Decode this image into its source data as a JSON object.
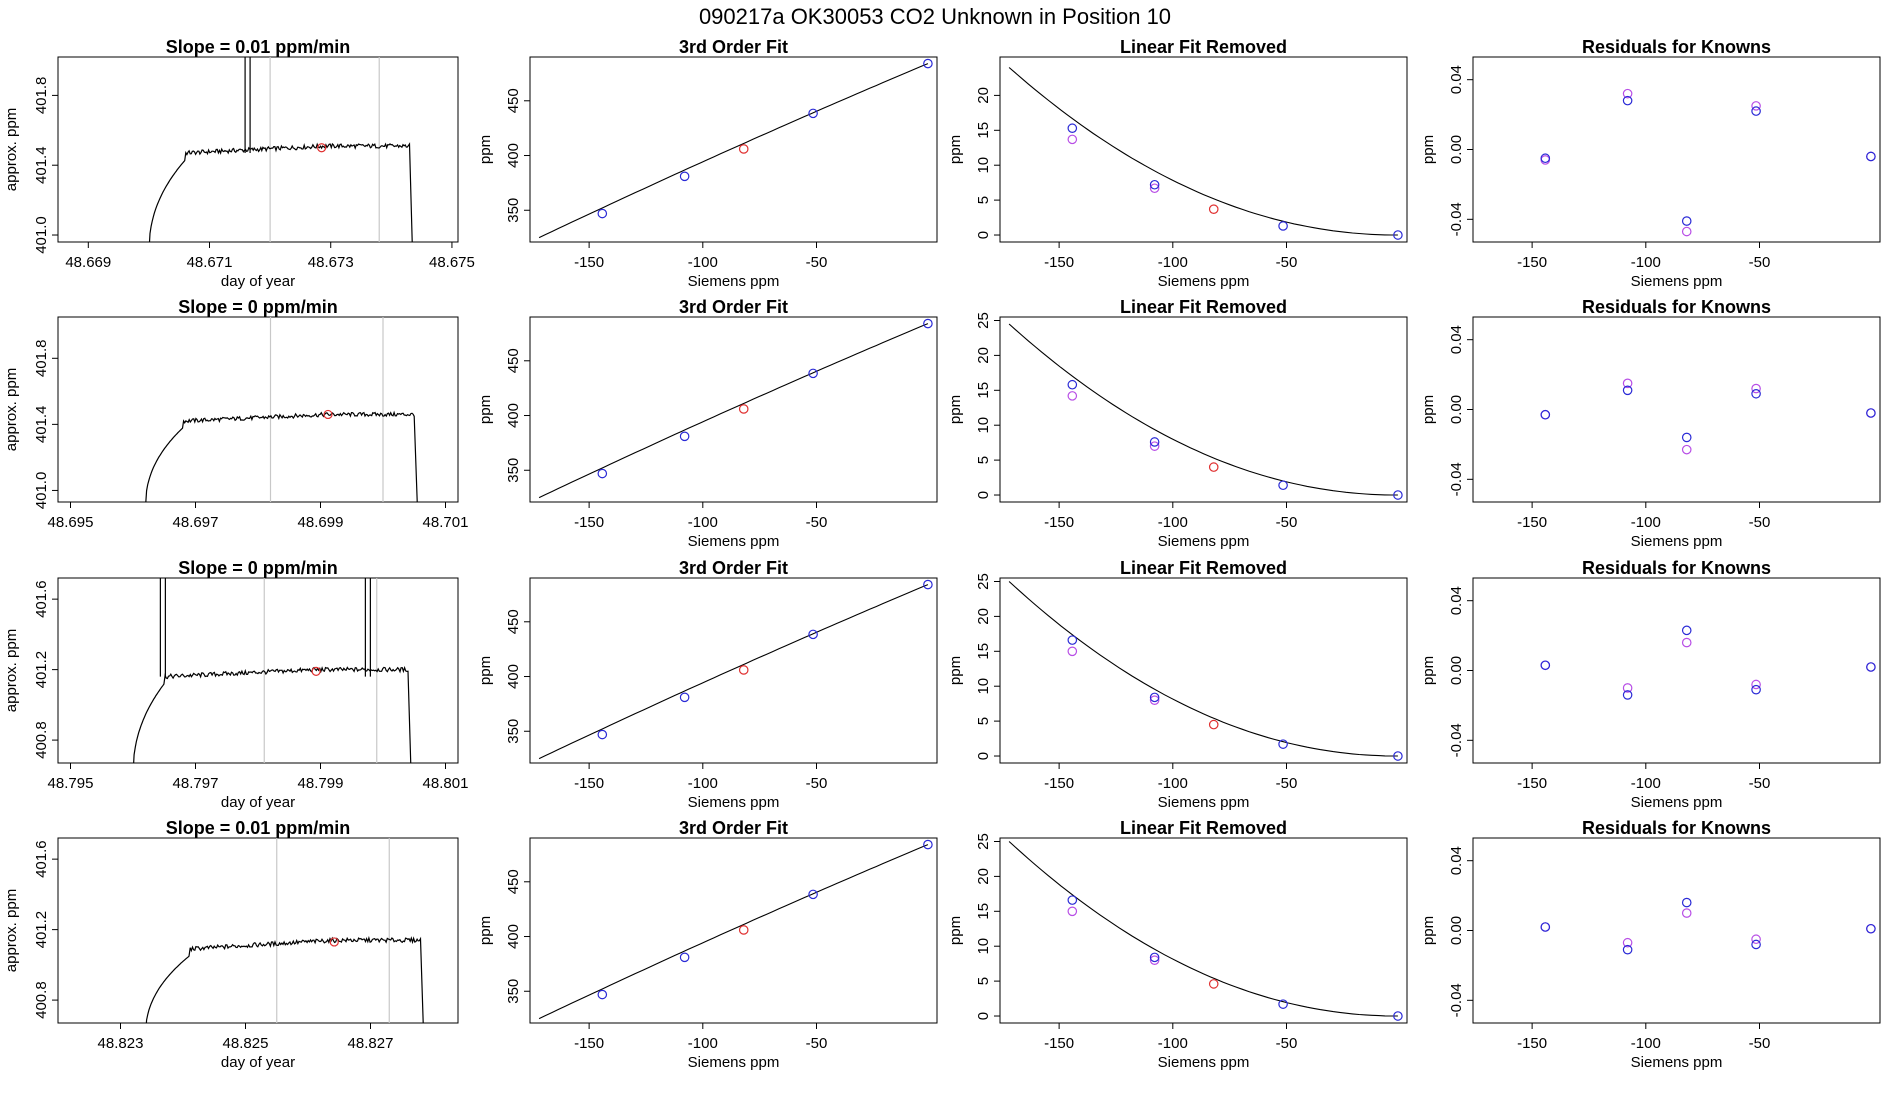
{
  "header": {
    "figure_title": "090217a      OK30053    CO2 Unknown in Position  10"
  },
  "colors": {
    "axis": "#000000",
    "trace": "#000000",
    "marker_line": "#c8c8c8",
    "unknown_point": "#e03030",
    "known_point": "#2a2ad6",
    "alt_point": "#b84ee6"
  },
  "chart_data": [
    {
      "type": "line",
      "panel": "time",
      "row": 0,
      "title": "Slope =  0.01  ppm/min",
      "xlabel": "day of year",
      "ylabel": "approx. ppm",
      "xlim": [
        48.6685,
        48.6751
      ],
      "ylim": [
        400.96,
        402.02
      ],
      "xticks": [
        48.669,
        48.671,
        48.673,
        48.675
      ],
      "xticklabels": [
        "48.669",
        "48.671",
        "48.673",
        "48.675"
      ],
      "yticks": [
        401.0,
        401.4,
        401.8
      ],
      "yticklabels": [
        "401.0",
        "401.4",
        "401.8"
      ],
      "vlines": [
        48.672,
        48.6738
      ],
      "trace": {
        "t_start": 48.67,
        "t_end": 48.6743,
        "rise_end": 48.6706,
        "plateau": 401.47,
        "plateau_end": 401.51,
        "base": 400.9,
        "spike_at": 48.67162
      },
      "point": {
        "x": 48.67285,
        "y": 401.5
      }
    },
    {
      "type": "scatter",
      "panel": "fit",
      "row": 0,
      "title": "3rd Order Fit",
      "xlabel": "Siemens ppm",
      "ylabel": "ppm",
      "xlim": [
        -176,
        3
      ],
      "ylim": [
        321,
        490
      ],
      "xticks": [
        -150,
        -100,
        -50
      ],
      "xticklabels": [
        "-150",
        "-100",
        "-50"
      ],
      "yticks": [
        350,
        400,
        450
      ],
      "yticklabels": [
        "350",
        "400",
        "450"
      ],
      "curve_x": [
        -172,
        -1
      ],
      "curve_y": [
        325,
        484
      ],
      "series": [
        {
          "name": "",
          "role": "known",
          "x": [
            -144.2,
            -108.0,
            -51.5,
            -1.0
          ],
          "y": [
            347.0,
            381.0,
            438.5,
            484.0
          ]
        },
        {
          "name": "",
          "role": "unknown",
          "x": [
            -82.0
          ],
          "y": [
            406.0
          ]
        }
      ]
    },
    {
      "type": "scatter",
      "panel": "linear",
      "row": 0,
      "title": "Linear Fit Removed",
      "xlabel": "Siemens ppm",
      "ylabel": "ppm",
      "xlim": [
        -176,
        3
      ],
      "ylim": [
        -1,
        25.5
      ],
      "xticks": [
        -150,
        -100,
        -50
      ],
      "xticklabels": [
        "-150",
        "-100",
        "-50"
      ],
      "yticks": [
        0,
        5,
        10,
        15,
        20
      ],
      "yticklabels": [
        "0",
        "5",
        "10",
        "15",
        "20"
      ],
      "curve_x": [
        -172,
        -1
      ],
      "curve_y": [
        24.0,
        0
      ],
      "series": [
        {
          "name": "",
          "role": "known",
          "x": [
            -144.2,
            -108.0,
            -51.5,
            -1.0
          ],
          "y": [
            15.3,
            7.2,
            1.3,
            0.0
          ]
        },
        {
          "name": "",
          "role": "alt",
          "x": [
            -144.2,
            -108.0
          ],
          "y": [
            13.7,
            6.7
          ]
        },
        {
          "name": "",
          "role": "unknown",
          "x": [
            -82.0
          ],
          "y": [
            3.7
          ]
        }
      ]
    },
    {
      "type": "scatter",
      "panel": "resid",
      "row": 0,
      "title": "Residuals for Knowns",
      "xlabel": "Siemens ppm",
      "ylabel": "ppm",
      "xlim": [
        -176,
        3
      ],
      "ylim": [
        -0.053,
        0.053
      ],
      "xticks": [
        -150,
        -100,
        -50
      ],
      "xticklabels": [
        "-150",
        "-100",
        "-50"
      ],
      "yticks": [
        -0.04,
        0.0,
        0.04
      ],
      "yticklabels": [
        "-0.04",
        "0.00",
        "0.04"
      ],
      "series": [
        {
          "name": "",
          "role": "known",
          "x": [
            -144.2,
            -108.0,
            -82.0,
            -51.5,
            -1.0
          ],
          "y": [
            -0.005,
            0.028,
            -0.041,
            0.022,
            -0.004
          ]
        },
        {
          "name": "",
          "role": "alt",
          "x": [
            -144.2,
            -108.0,
            -82.0,
            -51.5,
            -1.0
          ],
          "y": [
            -0.006,
            0.032,
            -0.047,
            0.025,
            -0.004
          ]
        }
      ]
    },
    {
      "type": "line",
      "panel": "time",
      "row": 1,
      "title": "Slope =  0  ppm/min",
      "xlabel": "",
      "ylabel": "approx. ppm",
      "xlim": [
        48.6948,
        48.7012
      ],
      "ylim": [
        400.93,
        402.05
      ],
      "xticks": [
        48.695,
        48.697,
        48.699,
        48.701
      ],
      "xticklabels": [
        "48.695",
        "48.697",
        "48.699",
        "48.701"
      ],
      "yticks": [
        401.0,
        401.4,
        401.8
      ],
      "yticklabels": [
        "401.0",
        "401.4",
        "401.8"
      ],
      "vlines": [
        48.6982,
        48.7
      ],
      "trace": {
        "t_start": 48.6962,
        "t_end": 48.7005,
        "rise_end": 48.6968,
        "plateau": 401.42,
        "plateau_end": 401.46,
        "base": 400.9,
        "spike_at": null
      },
      "point": {
        "x": 48.69912,
        "y": 401.46
      }
    },
    {
      "type": "scatter",
      "panel": "fit",
      "row": 1,
      "title": "3rd Order Fit",
      "xlabel": "Siemens ppm",
      "ylabel": "ppm",
      "xlim": [
        -176,
        3
      ],
      "ylim": [
        321,
        490
      ],
      "xticks": [
        -150,
        -100,
        -50
      ],
      "xticklabels": [
        "-150",
        "-100",
        "-50"
      ],
      "yticks": [
        350,
        400,
        450
      ],
      "yticklabels": [
        "350",
        "400",
        "450"
      ],
      "curve_x": [
        -172,
        -1
      ],
      "curve_y": [
        325,
        484
      ],
      "series": [
        {
          "name": "",
          "role": "known",
          "x": [
            -144.2,
            -108.0,
            -51.5,
            -1.0
          ],
          "y": [
            347.0,
            381.0,
            438.5,
            484.0
          ]
        },
        {
          "name": "",
          "role": "unknown",
          "x": [
            -82.0
          ],
          "y": [
            406.0
          ]
        }
      ]
    },
    {
      "type": "scatter",
      "panel": "linear",
      "row": 1,
      "title": "Linear Fit Removed",
      "xlabel": "Siemens ppm",
      "ylabel": "ppm",
      "xlim": [
        -176,
        3
      ],
      "ylim": [
        -1,
        25.5
      ],
      "xticks": [
        -150,
        -100,
        -50
      ],
      "xticklabels": [
        "-150",
        "-100",
        "-50"
      ],
      "yticks": [
        0,
        5,
        10,
        15,
        20,
        25
      ],
      "yticklabels": [
        "0",
        "5",
        "10",
        "15",
        "20",
        "25"
      ],
      "curve_x": [
        -172,
        -1
      ],
      "curve_y": [
        24.5,
        0
      ],
      "series": [
        {
          "name": "",
          "role": "known",
          "x": [
            -144.2,
            -108.0,
            -51.5,
            -1.0
          ],
          "y": [
            15.8,
            7.6,
            1.4,
            0.0
          ]
        },
        {
          "name": "",
          "role": "alt",
          "x": [
            -144.2,
            -108.0
          ],
          "y": [
            14.2,
            7.0
          ]
        },
        {
          "name": "",
          "role": "unknown",
          "x": [
            -82.0
          ],
          "y": [
            4.0
          ]
        }
      ]
    },
    {
      "type": "scatter",
      "panel": "resid",
      "row": 1,
      "title": "Residuals for Knowns",
      "xlabel": "Siemens ppm",
      "ylabel": "ppm",
      "xlim": [
        -176,
        3
      ],
      "ylim": [
        -0.053,
        0.053
      ],
      "xticks": [
        -150,
        -100,
        -50
      ],
      "xticklabels": [
        "-150",
        "-100",
        "-50"
      ],
      "yticks": [
        -0.04,
        0.0,
        0.04
      ],
      "yticklabels": [
        "-0.04",
        "0.00",
        "0.04"
      ],
      "series": [
        {
          "name": "",
          "role": "known",
          "x": [
            -144.2,
            -108.0,
            -82.0,
            -51.5,
            -1.0
          ],
          "y": [
            -0.003,
            0.011,
            -0.016,
            0.009,
            -0.002
          ]
        },
        {
          "name": "",
          "role": "alt",
          "x": [
            -144.2,
            -108.0,
            -82.0,
            -51.5,
            -1.0
          ],
          "y": [
            -0.003,
            0.015,
            -0.023,
            0.012,
            -0.002
          ]
        }
      ]
    },
    {
      "type": "line",
      "panel": "time",
      "row": 2,
      "title": "Slope =  0  ppm/min",
      "xlabel": "day of year",
      "ylabel": "approx. ppm",
      "xlim": [
        48.7948,
        48.8012
      ],
      "ylim": [
        400.67,
        401.72
      ],
      "xticks": [
        48.795,
        48.797,
        48.799,
        48.801
      ],
      "xticklabels": [
        "48.795",
        "48.797",
        "48.799",
        "48.801"
      ],
      "yticks": [
        400.8,
        401.2,
        401.6
      ],
      "yticklabels": [
        "400.8",
        "401.2",
        "401.6"
      ],
      "vlines": [
        48.7981,
        48.7999
      ],
      "trace": {
        "t_start": 48.796,
        "t_end": 48.8004,
        "rise_end": 48.7965,
        "plateau": 401.16,
        "plateau_end": 401.2,
        "base": 400.6,
        "spike_at": 48.79647,
        "spike2_at": 48.79975
      },
      "point": {
        "x": 48.79893,
        "y": 401.19
      }
    },
    {
      "type": "scatter",
      "panel": "fit",
      "row": 2,
      "title": "3rd Order Fit",
      "xlabel": "Siemens ppm",
      "ylabel": "ppm",
      "xlim": [
        -176,
        3
      ],
      "ylim": [
        321,
        490
      ],
      "xticks": [
        -150,
        -100,
        -50
      ],
      "xticklabels": [
        "-150",
        "-100",
        "-50"
      ],
      "yticks": [
        350,
        400,
        450
      ],
      "yticklabels": [
        "350",
        "400",
        "450"
      ],
      "curve_x": [
        -172,
        -1
      ],
      "curve_y": [
        325,
        484
      ],
      "series": [
        {
          "name": "",
          "role": "known",
          "x": [
            -144.2,
            -108.0,
            -51.5,
            -1.0
          ],
          "y": [
            347.0,
            381.0,
            438.5,
            484.0
          ]
        },
        {
          "name": "",
          "role": "unknown",
          "x": [
            -82.0
          ],
          "y": [
            406.0
          ]
        }
      ]
    },
    {
      "type": "scatter",
      "panel": "linear",
      "row": 2,
      "title": "Linear Fit Removed",
      "xlabel": "Siemens ppm",
      "ylabel": "ppm",
      "xlim": [
        -176,
        3
      ],
      "ylim": [
        -1,
        25.5
      ],
      "xticks": [
        -150,
        -100,
        -50
      ],
      "xticklabels": [
        "-150",
        "-100",
        "-50"
      ],
      "yticks": [
        0,
        5,
        10,
        15,
        20,
        25
      ],
      "yticklabels": [
        "0",
        "5",
        "10",
        "15",
        "20",
        "25"
      ],
      "curve_x": [
        -172,
        -1
      ],
      "curve_y": [
        25.0,
        0
      ],
      "series": [
        {
          "name": "",
          "role": "known",
          "x": [
            -144.2,
            -108.0,
            -51.5,
            -1.0
          ],
          "y": [
            16.6,
            8.4,
            1.7,
            0.0
          ]
        },
        {
          "name": "",
          "role": "alt",
          "x": [
            -144.2,
            -108.0
          ],
          "y": [
            15.0,
            8.0
          ]
        },
        {
          "name": "",
          "role": "unknown",
          "x": [
            -82.0
          ],
          "y": [
            4.5
          ]
        }
      ]
    },
    {
      "type": "scatter",
      "panel": "resid",
      "row": 2,
      "title": "Residuals for Knowns",
      "xlabel": "Siemens ppm",
      "ylabel": "ppm",
      "xlim": [
        -176,
        3
      ],
      "ylim": [
        -0.053,
        0.053
      ],
      "xticks": [
        -150,
        -100,
        -50
      ],
      "xticklabels": [
        "-150",
        "-100",
        "-50"
      ],
      "yticks": [
        -0.04,
        0.0,
        0.04
      ],
      "yticklabels": [
        "-0.04",
        "0.00",
        "0.04"
      ],
      "series": [
        {
          "name": "",
          "role": "known",
          "x": [
            -144.2,
            -108.0,
            -82.0,
            -51.5,
            -1.0
          ],
          "y": [
            0.003,
            -0.014,
            0.023,
            -0.011,
            0.002
          ]
        },
        {
          "name": "",
          "role": "alt",
          "x": [
            -144.2,
            -108.0,
            -82.0,
            -51.5,
            -1.0
          ],
          "y": [
            0.003,
            -0.01,
            0.016,
            -0.008,
            0.002
          ]
        }
      ]
    },
    {
      "type": "line",
      "panel": "time",
      "row": 3,
      "title": "Slope =  0.01  ppm/min",
      "xlabel": "day of year",
      "ylabel": "approx. ppm",
      "xlim": [
        48.822,
        48.8284
      ],
      "ylim": [
        400.67,
        401.72
      ],
      "xticks": [
        48.823,
        48.825,
        48.827
      ],
      "xticklabels": [
        "48.823",
        "48.825",
        "48.827"
      ],
      "yticks": [
        400.8,
        401.2,
        401.6
      ],
      "yticklabels": [
        "400.8",
        "401.2",
        "401.6"
      ],
      "vlines": [
        48.8255,
        48.8273
      ],
      "trace": {
        "t_start": 48.8234,
        "t_end": 48.8278,
        "rise_end": 48.8241,
        "plateau": 401.09,
        "plateau_end": 401.14,
        "base": 400.6,
        "spike_at": null
      },
      "point": {
        "x": 48.82642,
        "y": 401.13
      }
    },
    {
      "type": "scatter",
      "panel": "fit",
      "row": 3,
      "title": "3rd Order Fit",
      "xlabel": "Siemens ppm",
      "ylabel": "ppm",
      "xlim": [
        -176,
        3
      ],
      "ylim": [
        321,
        490
      ],
      "xticks": [
        -150,
        -100,
        -50
      ],
      "xticklabels": [
        "-150",
        "-100",
        "-50"
      ],
      "yticks": [
        350,
        400,
        450
      ],
      "yticklabels": [
        "350",
        "400",
        "450"
      ],
      "curve_x": [
        -172,
        -1
      ],
      "curve_y": [
        325,
        484
      ],
      "series": [
        {
          "name": "",
          "role": "known",
          "x": [
            -144.2,
            -108.0,
            -51.5,
            -1.0
          ],
          "y": [
            347.0,
            381.0,
            438.5,
            484.0
          ]
        },
        {
          "name": "",
          "role": "unknown",
          "x": [
            -82.0
          ],
          "y": [
            406.0
          ]
        }
      ]
    },
    {
      "type": "scatter",
      "panel": "linear",
      "row": 3,
      "title": "Linear Fit Removed",
      "xlabel": "Siemens ppm",
      "ylabel": "ppm",
      "xlim": [
        -176,
        3
      ],
      "ylim": [
        -1,
        25.5
      ],
      "xticks": [
        -150,
        -100,
        -50
      ],
      "xticklabels": [
        "-150",
        "-100",
        "-50"
      ],
      "yticks": [
        0,
        5,
        10,
        15,
        20,
        25
      ],
      "yticklabels": [
        "0",
        "5",
        "10",
        "15",
        "20",
        "25"
      ],
      "curve_x": [
        -172,
        -1
      ],
      "curve_y": [
        25.0,
        0
      ],
      "series": [
        {
          "name": "",
          "role": "known",
          "x": [
            -144.2,
            -108.0,
            -51.5,
            -1.0
          ],
          "y": [
            16.6,
            8.4,
            1.7,
            0.0
          ]
        },
        {
          "name": "",
          "role": "alt",
          "x": [
            -144.2,
            -108.0
          ],
          "y": [
            15.0,
            8.0
          ]
        },
        {
          "name": "",
          "role": "unknown",
          "x": [
            -82.0
          ],
          "y": [
            4.6
          ]
        }
      ]
    },
    {
      "type": "scatter",
      "panel": "resid",
      "row": 3,
      "title": "Residuals for Knowns",
      "xlabel": "Siemens ppm",
      "ylabel": "ppm",
      "xlim": [
        -176,
        3
      ],
      "ylim": [
        -0.053,
        0.053
      ],
      "xticks": [
        -150,
        -100,
        -50
      ],
      "xticklabels": [
        "-150",
        "-100",
        "-50"
      ],
      "yticks": [
        -0.04,
        0.0,
        0.04
      ],
      "yticklabels": [
        "-0.04",
        "0.00",
        "0.04"
      ],
      "series": [
        {
          "name": "",
          "role": "known",
          "x": [
            -144.2,
            -108.0,
            -82.0,
            -51.5,
            -1.0
          ],
          "y": [
            0.002,
            -0.011,
            0.016,
            -0.008,
            0.001
          ]
        },
        {
          "name": "",
          "role": "alt",
          "x": [
            -144.2,
            -108.0,
            -82.0,
            -51.5,
            -1.0
          ],
          "y": [
            0.002,
            -0.007,
            0.01,
            -0.005,
            0.001
          ]
        }
      ]
    }
  ]
}
